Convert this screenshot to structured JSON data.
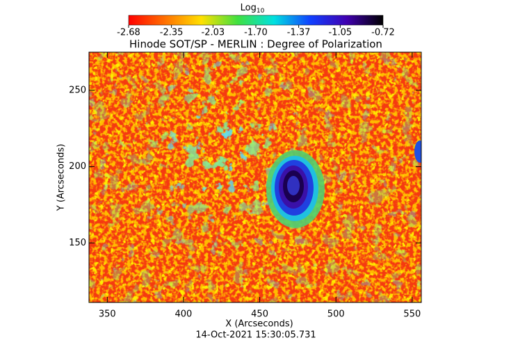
{
  "chart_data": {
    "type": "heatmap",
    "title": "Hinode SOT/SP - MERLIN : Degree of Polarization",
    "x_label": "X (Arcseconds)",
    "y_label": "Y (Arcseconds)",
    "footnote": "14-Oct-2021 15:30:05.731",
    "colorbar_label": "Log",
    "colorbar_label_sub": "10",
    "clim": [
      -2.68,
      -0.72
    ],
    "cticks": [
      {
        "value": -2.68,
        "label": "-2.68"
      },
      {
        "value": -2.35,
        "label": "-2.35"
      },
      {
        "value": -2.03,
        "label": "-2.03"
      },
      {
        "value": -1.7,
        "label": "-1.70"
      },
      {
        "value": -1.37,
        "label": "-1.37"
      },
      {
        "value": -1.05,
        "label": "-1.05"
      },
      {
        "value": -0.72,
        "label": "-0.72"
      }
    ],
    "colormap": [
      "#ff0000",
      "#ff7000",
      "#ffe000",
      "#40e040",
      "#00e0e0",
      "#1040ff",
      "#4000b0",
      "#000000"
    ],
    "xlim": [
      338,
      556
    ],
    "xticks": [
      350,
      400,
      450,
      500,
      550
    ],
    "ylim": [
      111,
      275
    ],
    "yticks": [
      150,
      200,
      250
    ]
  }
}
